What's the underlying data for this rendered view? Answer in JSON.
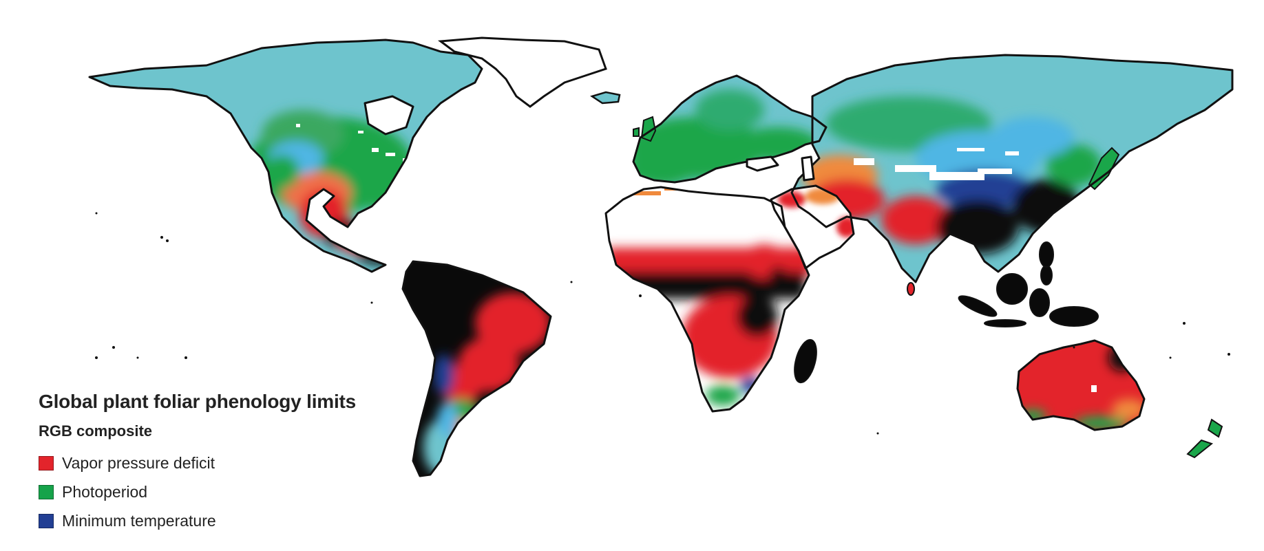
{
  "legend": {
    "title": "Global plant foliar phenology limits",
    "subtitle": "RGB composite",
    "items": [
      {
        "label": "Vapor pressure deficit",
        "color": "#e3242b"
      },
      {
        "label": "Photoperiod",
        "color": "#16a34a"
      },
      {
        "label": "Minimum temperature",
        "color": "#223f94"
      }
    ]
  },
  "colors": {
    "background": "#ffffff",
    "coastline": "#111111",
    "vpd_red": "#e3242b",
    "photoperiod_green": "#1aa64a",
    "min_temp_blue": "#223f94",
    "cold_cyan": "#6cc4cf",
    "light_blue": "#4fb6e4",
    "orange": "#f08a3c",
    "black": "#0a0a0a",
    "desert_white": "#ffffff"
  }
}
